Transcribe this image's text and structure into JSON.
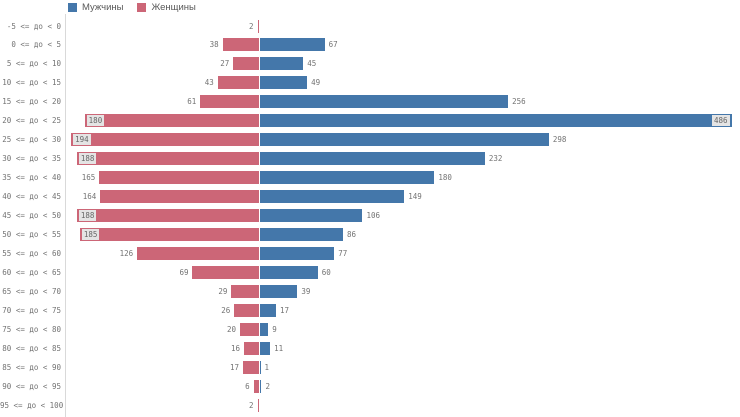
{
  "legend": {
    "items": [
      {
        "label": "Мужчины",
        "color": "#4477aa"
      },
      {
        "label": "Женщины",
        "color": "#cc6677"
      }
    ]
  },
  "chart_data": {
    "type": "bar",
    "variant": "population-pyramid",
    "orientation": "horizontal-diverging",
    "title": "",
    "legend_position": "top",
    "value_labels_shown": true,
    "grid": false,
    "categories": [
      "-5 <= до < 0",
      "0 <= до < 5",
      "5 <= до < 10",
      "10 <= до < 15",
      "15 <= до < 20",
      "20 <= до < 25",
      "25 <= до < 30",
      "30 <= до < 35",
      "35 <= до < 40",
      "40 <= до < 45",
      "45 <= до < 50",
      "50 <= до < 55",
      "55 <= до < 60",
      "60 <= до < 65",
      "65 <= до < 70",
      "70 <= до < 75",
      "75 <= до < 80",
      "80 <= до < 85",
      "85 <= до < 90",
      "90 <= до < 95",
      "95 <= до < 100"
    ],
    "series": [
      {
        "name": "Мужчины",
        "side": "right",
        "color": "#4477aa",
        "values": [
          0,
          67,
          45,
          49,
          256,
          486,
          298,
          232,
          180,
          149,
          106,
          86,
          77,
          60,
          39,
          17,
          9,
          11,
          1,
          2,
          0
        ]
      },
      {
        "name": "Женщины",
        "side": "left",
        "color": "#cc6677",
        "values": [
          2,
          38,
          27,
          43,
          61,
          180,
          194,
          188,
          165,
          164,
          188,
          185,
          126,
          69,
          29,
          26,
          20,
          16,
          17,
          6,
          2
        ]
      }
    ],
    "value_axis_max": 486
  }
}
